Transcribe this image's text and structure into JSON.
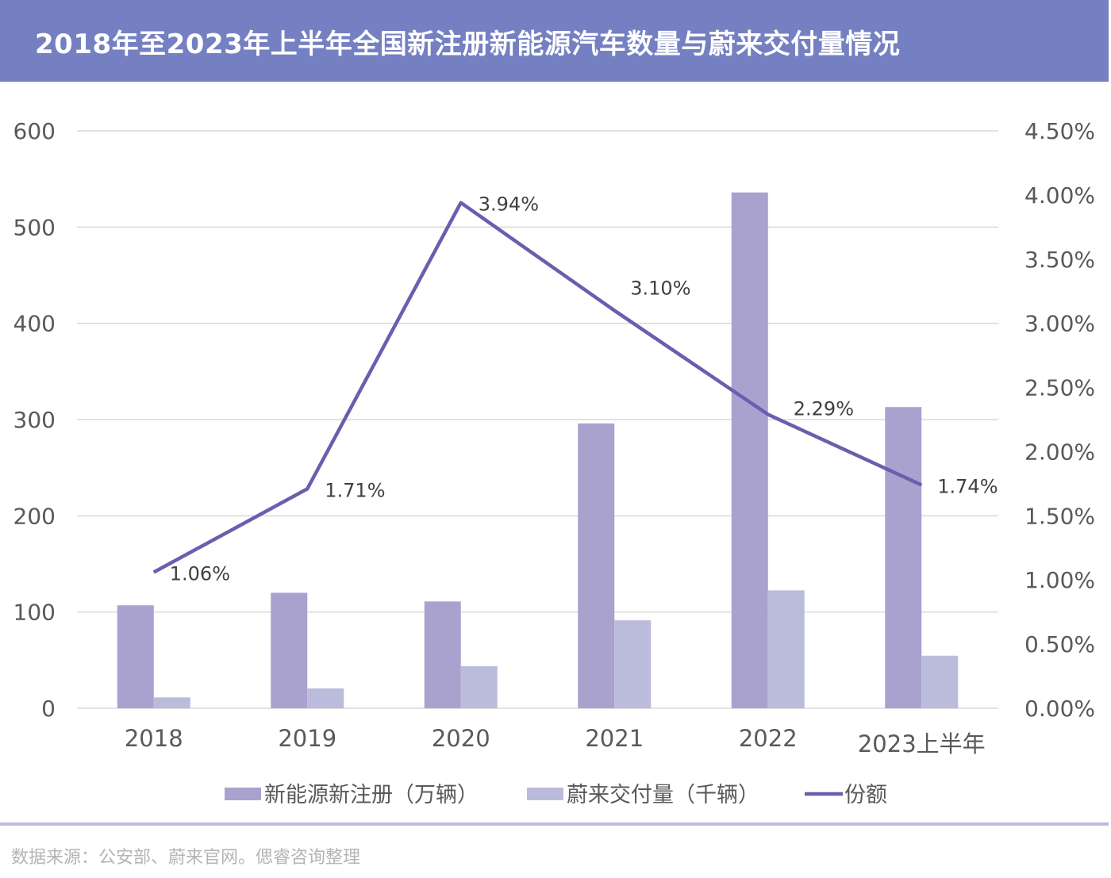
{
  "title": "2018年至2023年上半年全国新注册新能源汽车数量与蔚来交付量情况",
  "source": "数据来源：公安部、蔚来官网。偲睿咨询整理",
  "colors": {
    "header_bg": "#7580c2",
    "series_registrations": "#a9a2cf",
    "series_deliveries": "#bbbcdb",
    "series_share": "#6b5eae",
    "grid": "#d9d9d9",
    "axis_text": "#595959"
  },
  "chart_data": {
    "type": "bar",
    "categories": [
      "2018",
      "2019",
      "2020",
      "2021",
      "2022",
      "2023上半年"
    ],
    "series": [
      {
        "name": "新能源新注册（万辆）",
        "type": "bar",
        "axis": "left",
        "values": [
          107,
          120,
          111,
          296,
          536,
          313
        ]
      },
      {
        "name": "蔚来交付量（千辆）",
        "type": "bar",
        "axis": "left",
        "values": [
          11.3,
          20.6,
          43.7,
          91.4,
          122.5,
          54.6
        ]
      },
      {
        "name": "份额",
        "type": "line",
        "axis": "right",
        "values": [
          1.06,
          1.71,
          3.94,
          3.1,
          2.29,
          1.74
        ],
        "labels": [
          "1.06%",
          "1.71%",
          "3.94%",
          "3.10%",
          "2.29%",
          "1.74%"
        ]
      }
    ],
    "left_axis": {
      "ylim": [
        0,
        600
      ],
      "ticks": [
        "0",
        "100",
        "200",
        "300",
        "400",
        "500",
        "600"
      ]
    },
    "right_axis": {
      "ylim": [
        0,
        4.5
      ],
      "ticks": [
        "0.00%",
        "0.50%",
        "1.00%",
        "1.50%",
        "2.00%",
        "2.50%",
        "3.00%",
        "3.50%",
        "4.00%",
        "4.50%"
      ]
    },
    "grid": true,
    "legend": "bottom"
  }
}
